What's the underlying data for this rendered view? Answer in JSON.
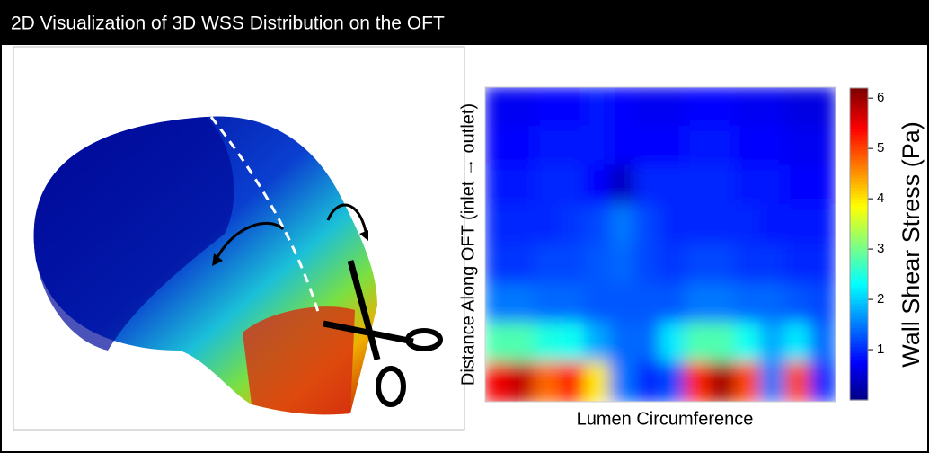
{
  "chart_data": {
    "type": "heatmap",
    "title": "2D Visualization of 3D WSS Distribution on the OFT",
    "xlabel": "Lumen Circumference",
    "ylabel": "Distance Along OFT (inlet → outlet)",
    "colorbar_label": "Wall Shear Stress (Pa)",
    "clim": [
      0,
      6.2
    ],
    "colorbar_ticks": [
      1,
      2,
      3,
      4,
      5,
      6
    ],
    "colormap": "jet",
    "z": [
      [
        0.7,
        0.7,
        0.8,
        0.8,
        0.9,
        0.8,
        0.7,
        0.7,
        0.8,
        0.8,
        0.7,
        0.7,
        0.6,
        0.6
      ],
      [
        0.8,
        0.8,
        0.9,
        0.9,
        0.9,
        0.8,
        0.8,
        0.8,
        0.9,
        0.9,
        0.8,
        0.8,
        0.7,
        0.7
      ],
      [
        0.9,
        0.9,
        1.0,
        1.0,
        0.8,
        0.4,
        1.0,
        1.0,
        1.0,
        1.0,
        0.9,
        0.9,
        0.8,
        0.8
      ],
      [
        1.0,
        1.0,
        1.0,
        1.1,
        1.2,
        1.5,
        1.2,
        1.0,
        1.0,
        1.0,
        1.0,
        0.9,
        0.9,
        0.9
      ],
      [
        1.1,
        1.1,
        1.2,
        1.2,
        1.3,
        1.4,
        1.2,
        1.1,
        1.2,
        1.2,
        1.1,
        1.1,
        1.0,
        1.0
      ],
      [
        1.5,
        1.5,
        1.4,
        1.4,
        1.3,
        1.3,
        1.3,
        1.3,
        1.5,
        1.5,
        1.4,
        1.4,
        1.3,
        1.2
      ],
      [
        2.8,
        2.8,
        2.5,
        2.4,
        1.8,
        1.4,
        1.4,
        2.2,
        2.8,
        2.8,
        2.4,
        1.8,
        2.2,
        1.4
      ],
      [
        5.5,
        5.8,
        4.8,
        5.3,
        4.0,
        1.5,
        1.0,
        1.2,
        5.2,
        6.0,
        5.0,
        1.5,
        5.0,
        1.0
      ]
    ]
  }
}
